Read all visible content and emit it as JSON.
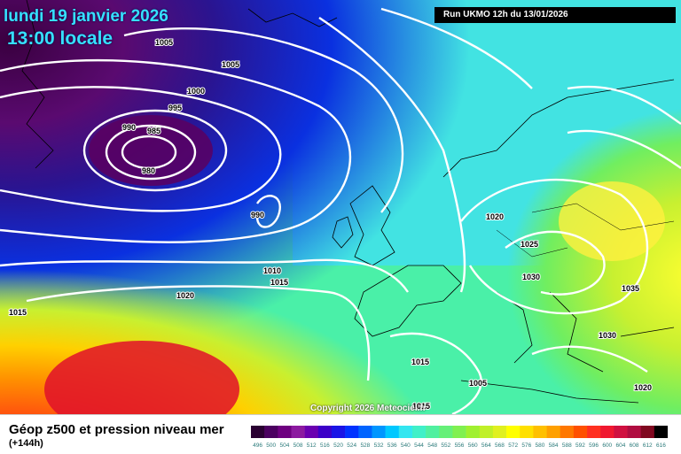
{
  "header": {
    "date": "lundi 19 janvier 2026",
    "time": "13:00 locale",
    "run": "Run UKMO 12h du 13/01/2026"
  },
  "footer": {
    "title": "Géop z500 et pression niveau mer",
    "lead": "(+144h)",
    "copyright": "Copyright 2026 Meteociel.fr"
  },
  "isobar_labels": [
    "1005",
    "1005",
    "1000",
    "995",
    "990",
    "985",
    "980",
    "990",
    "1010",
    "1015",
    "1020",
    "1015",
    "1020",
    "1025",
    "1030",
    "1035",
    "1030",
    "1015",
    "1005",
    "1020",
    "1015"
  ],
  "scale": {
    "values": [
      "496",
      "500",
      "504",
      "508",
      "512",
      "516",
      "520",
      "524",
      "528",
      "532",
      "536",
      "540",
      "544",
      "548",
      "552",
      "556",
      "560",
      "564",
      "568",
      "572",
      "576",
      "580",
      "584",
      "588",
      "592",
      "596",
      "600",
      "604",
      "608",
      "612",
      "616"
    ],
    "colors": [
      "#2a0032",
      "#4b0060",
      "#6e0080",
      "#8c1aa0",
      "#6a00b0",
      "#3c00c8",
      "#1a14e6",
      "#0032ff",
      "#0064ff",
      "#0096ff",
      "#00c8ff",
      "#33e6f0",
      "#40f0c8",
      "#50f0a0",
      "#66f078",
      "#80f050",
      "#a0f030",
      "#c0f028",
      "#e0f020",
      "#ffff00",
      "#ffe000",
      "#ffc000",
      "#ffa000",
      "#ff7800",
      "#ff5000",
      "#ff3020",
      "#f01830",
      "#d01040",
      "#b00c40",
      "#800820",
      "#000000"
    ]
  }
}
